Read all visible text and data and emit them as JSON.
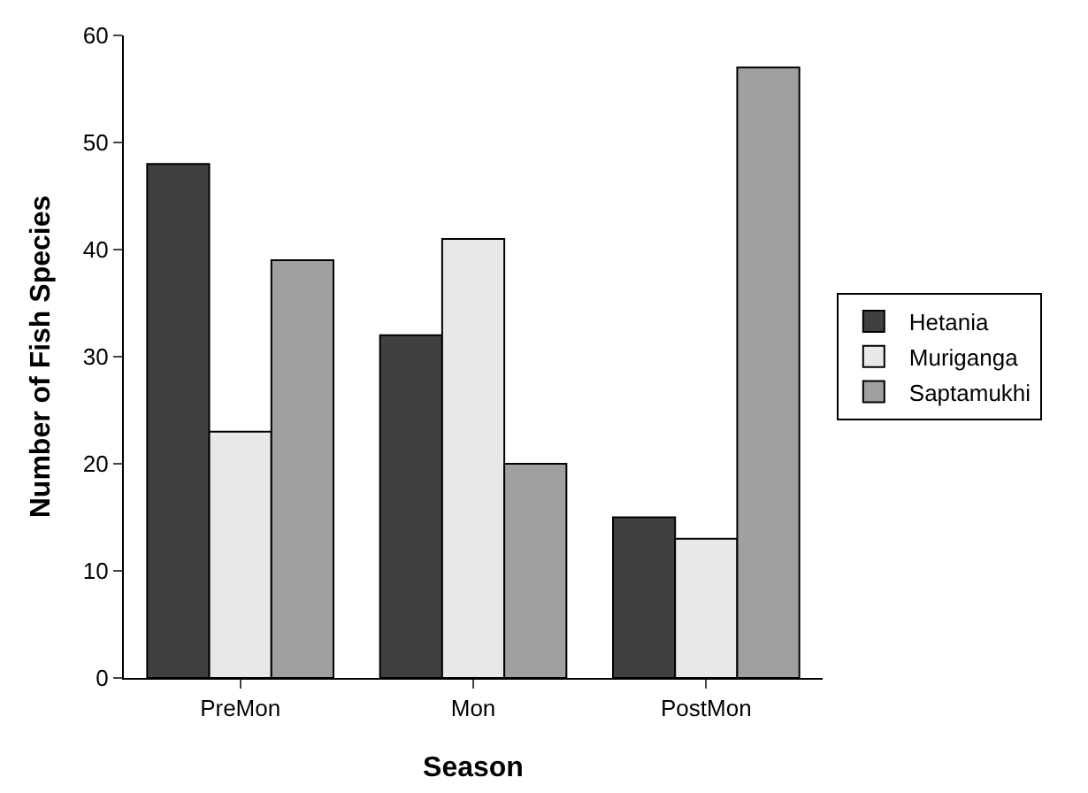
{
  "chart_data": {
    "type": "bar",
    "xlabel": "Season",
    "ylabel": "Number of Fish Species",
    "categories": [
      "PreMon",
      "Mon",
      "PostMon"
    ],
    "series": [
      {
        "name": "Hetania",
        "color": "#404040",
        "values": [
          48,
          32,
          15
        ]
      },
      {
        "name": "Muriganga",
        "color": "#e8e8e8",
        "values": [
          23,
          41,
          13
        ]
      },
      {
        "name": "Saptamukhi",
        "color": "#a0a0a0",
        "values": [
          39,
          20,
          57
        ]
      }
    ],
    "ylim": [
      0,
      60
    ],
    "yticks": [
      0,
      10,
      20,
      30,
      40,
      50,
      60
    ],
    "grid": false,
    "legend": "right"
  }
}
